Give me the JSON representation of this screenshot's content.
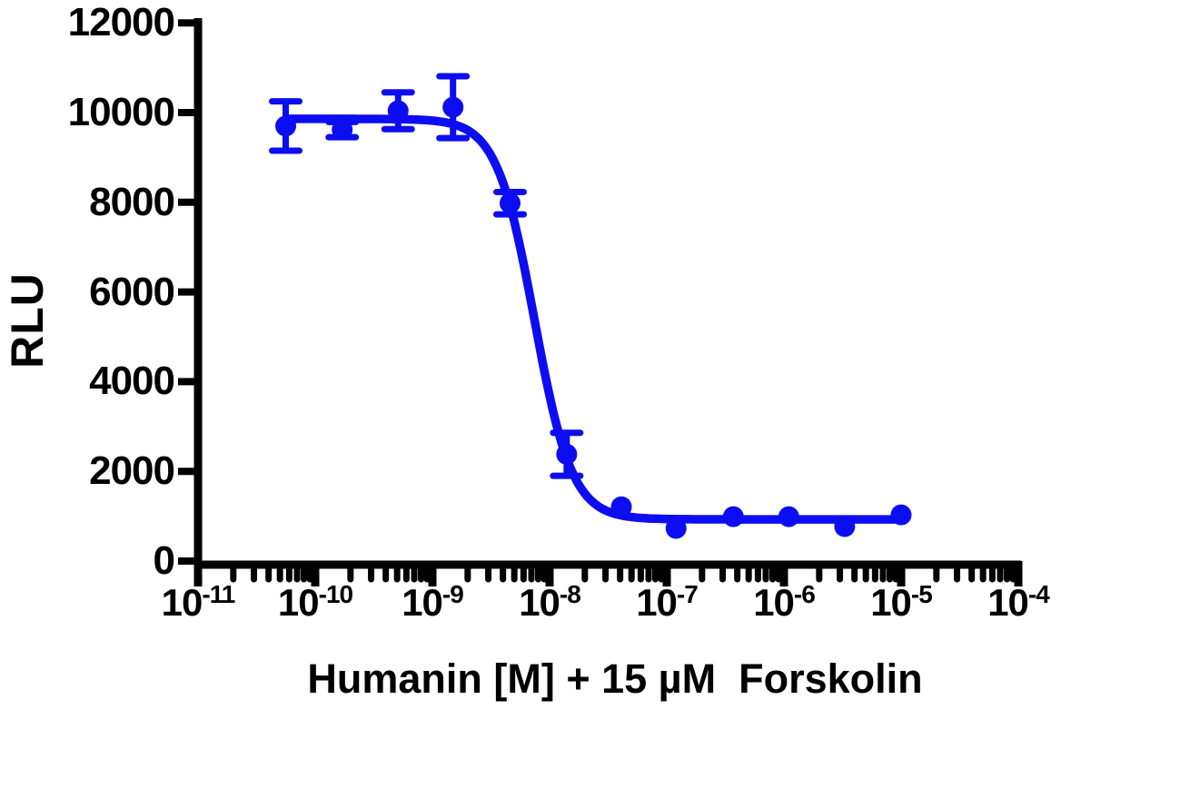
{
  "chart_data": {
    "type": "scatter",
    "subtype": "dose-response-inhibition",
    "title": "",
    "xlabel": "Humanin [M] + 15 µM  Forskolin",
    "ylabel": "RLU",
    "x_scale": "log10",
    "xlim_log10": [
      -11,
      -4
    ],
    "ylim": [
      0,
      12000
    ],
    "grid": false,
    "legend": "none",
    "y_ticks": [
      0,
      2000,
      4000,
      6000,
      8000,
      10000,
      12000
    ],
    "x_tick_base": "10",
    "x_tick_exponents": [
      -11,
      -10,
      -9,
      -8,
      -7,
      -6,
      -5,
      -4
    ],
    "x_minor_ticks": "log-minor-2-to-9-per-decade",
    "axis_color": "#000000",
    "series": [
      {
        "name": "Humanin + 15 uM Forskolin",
        "color": "#0D0DF2",
        "marker": "circle",
        "points": [
          {
            "x": 5.6e-11,
            "y": 9700,
            "err": 550
          },
          {
            "x": 1.7e-10,
            "y": 9620,
            "err": 170
          },
          {
            "x": 5.1e-10,
            "y": 10040,
            "err": 410
          },
          {
            "x": 1.5e-09,
            "y": 10120,
            "err": 690
          },
          {
            "x": 4.6e-09,
            "y": 7980,
            "err": 250
          },
          {
            "x": 1.4e-08,
            "y": 2380,
            "err": 480
          },
          {
            "x": 4.1e-08,
            "y": 1210,
            "err": 0
          },
          {
            "x": 1.2e-07,
            "y": 730,
            "err": 0
          },
          {
            "x": 3.7e-07,
            "y": 990,
            "err": 0
          },
          {
            "x": 1.1e-06,
            "y": 990,
            "err": 0
          },
          {
            "x": 3.3e-06,
            "y": 770,
            "err": 0
          },
          {
            "x": 1e-05,
            "y": 1030,
            "err": 0
          }
        ],
        "fit": {
          "model": "4PL",
          "top": 9860,
          "bottom": 930,
          "log_ec50": -8.13,
          "hill_slope": 2.7,
          "curve_range_log10": [
            -10.2518,
            -5.0
          ]
        }
      }
    ]
  }
}
